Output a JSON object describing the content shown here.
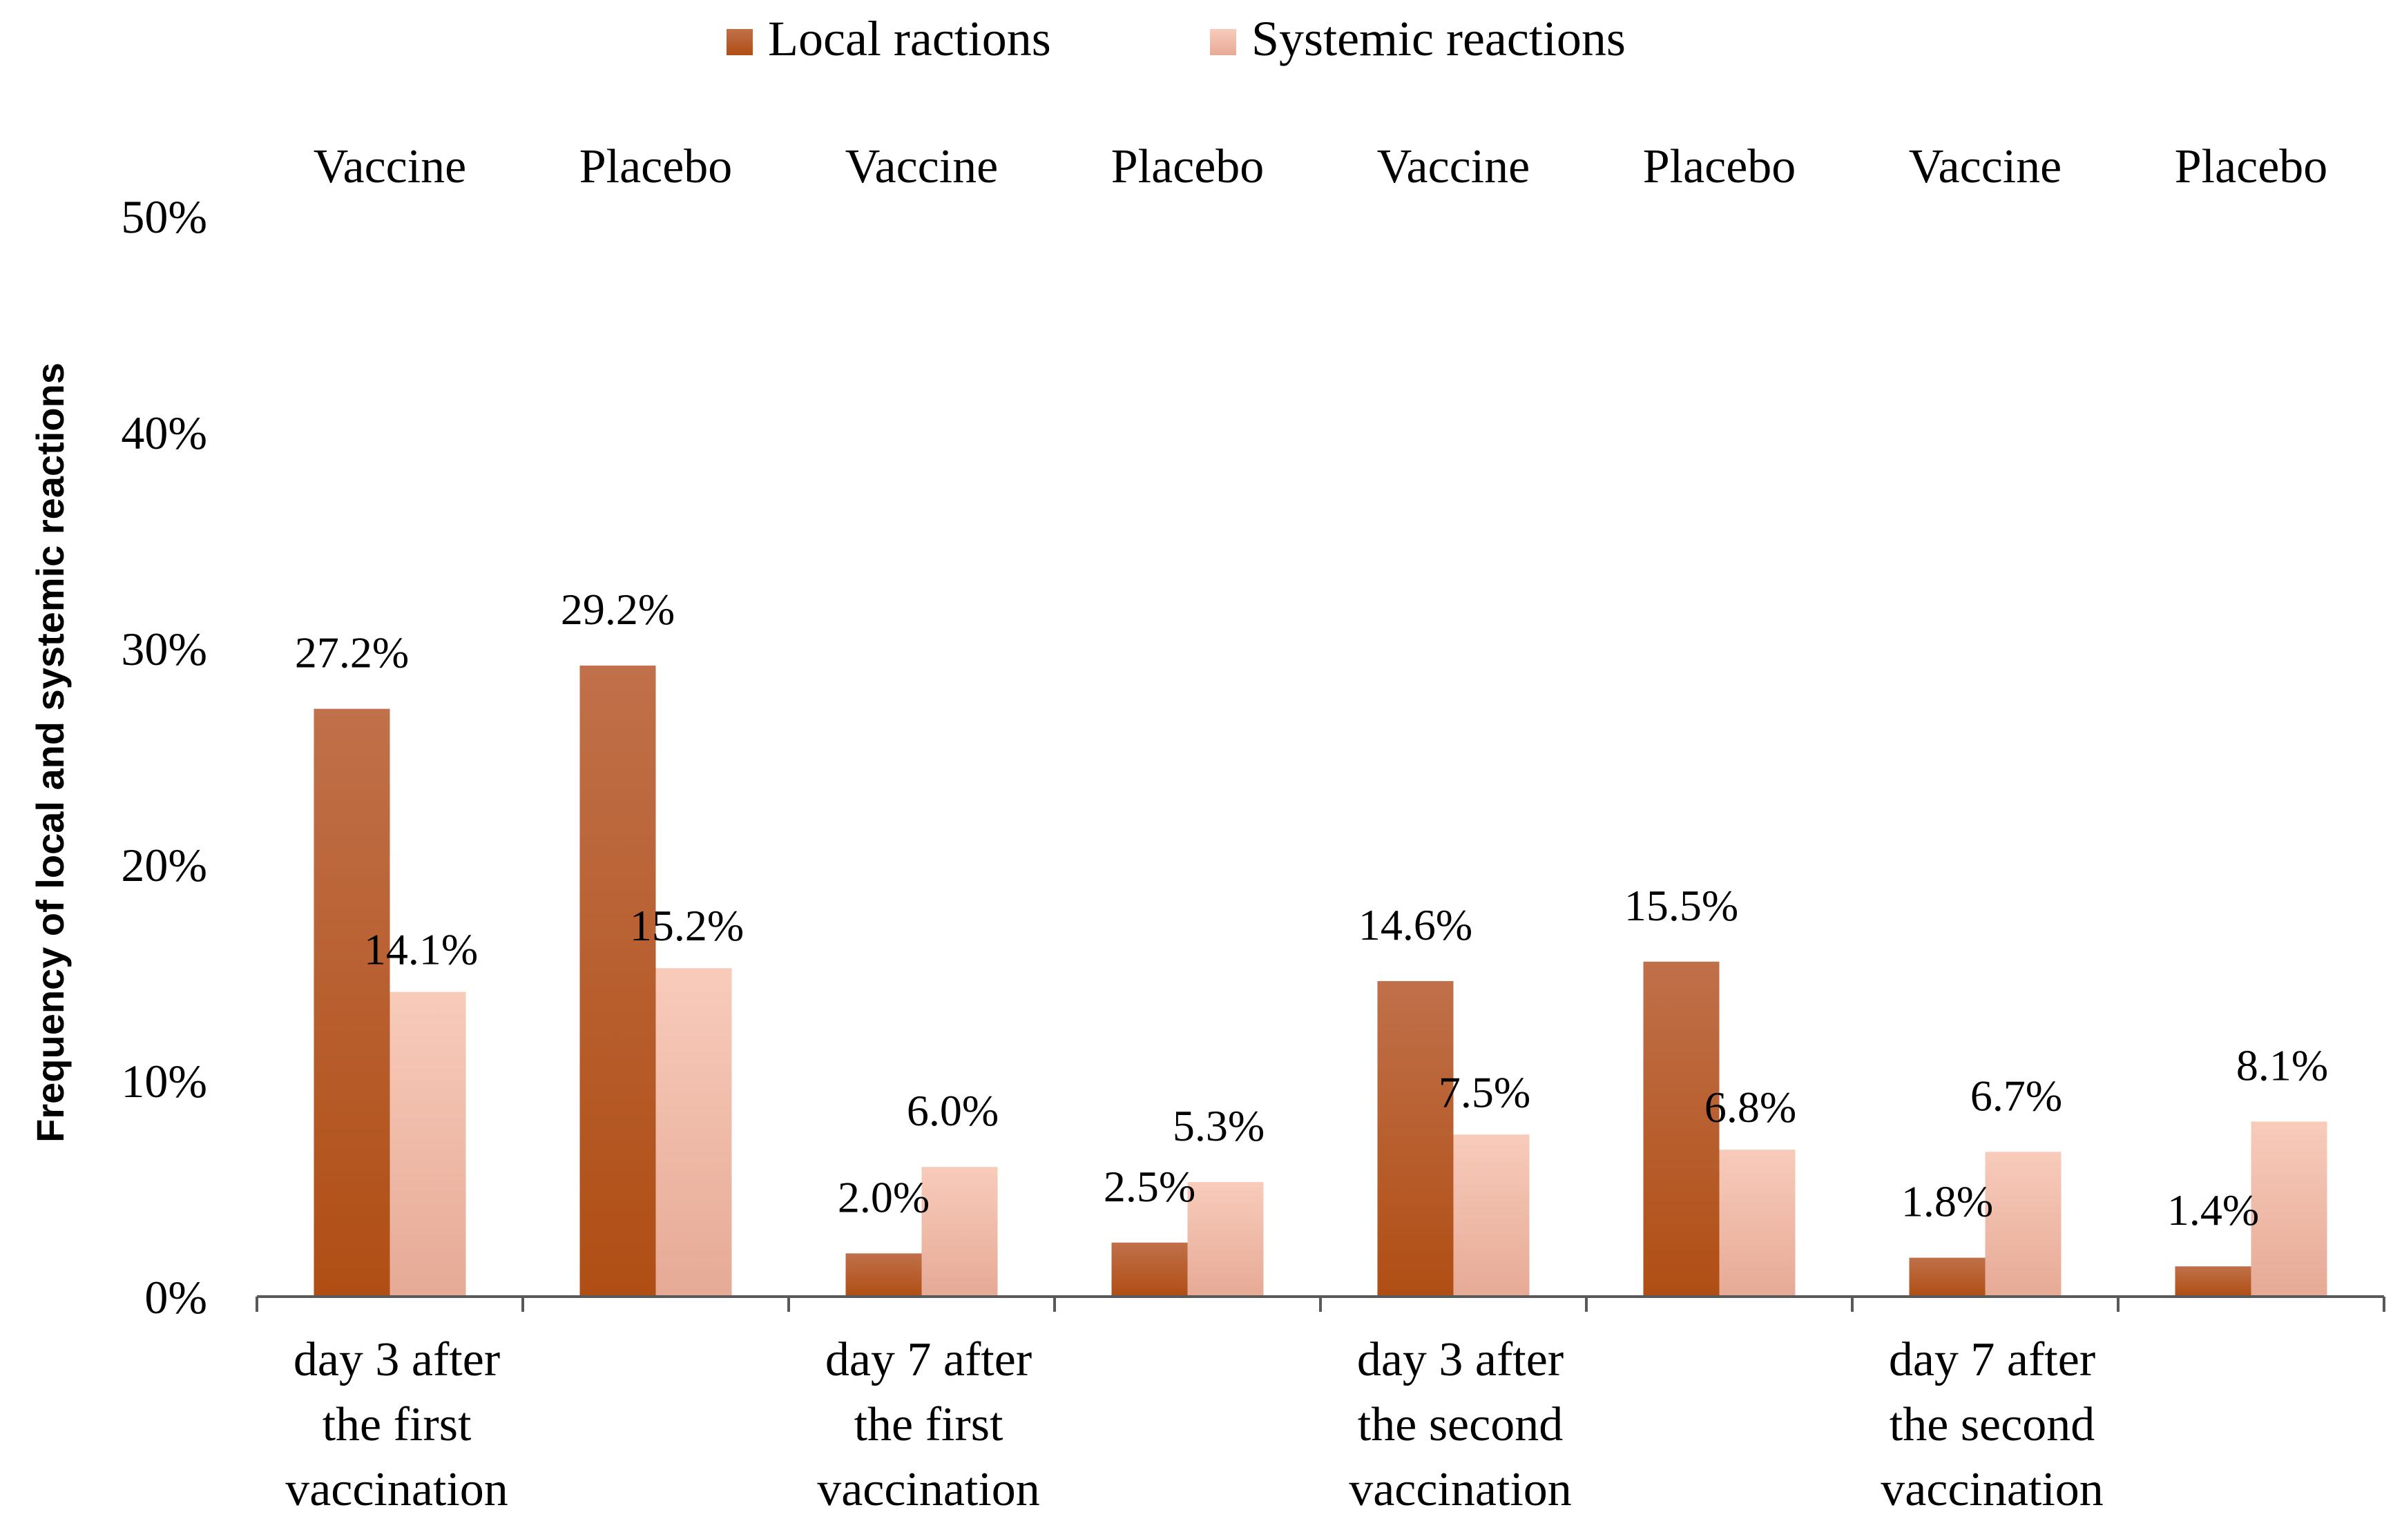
{
  "chart_data": {
    "type": "bar",
    "title": "",
    "xlabel": "",
    "ylabel": "Frequency of local and systemic reactions",
    "ylim": [
      0,
      50
    ],
    "yticks": [
      "0%",
      "10%",
      "20%",
      "30%",
      "40%",
      "50%"
    ],
    "legend": {
      "position": "top-center",
      "entries": [
        "Local ractions",
        "Systemic reactions"
      ]
    },
    "groups": [
      {
        "label": [
          "day 3 after",
          "the first",
          "vaccination"
        ],
        "subgroups": [
          "Vaccine",
          "Placebo"
        ]
      },
      {
        "label": [
          "day 7 after",
          "the first",
          "vaccination"
        ],
        "subgroups": [
          "Vaccine",
          "Placebo"
        ]
      },
      {
        "label": [
          "day 3 after",
          "the second",
          "vaccination"
        ],
        "subgroups": [
          "Vaccine",
          "Placebo"
        ]
      },
      {
        "label": [
          "day 7 after",
          "the second",
          "vaccination"
        ],
        "subgroups": [
          "Vaccine",
          "Placebo"
        ]
      }
    ],
    "categories": [
      "Vaccine",
      "Placebo",
      "Vaccine",
      "Placebo",
      "Vaccine",
      "Placebo",
      "Vaccine",
      "Placebo"
    ],
    "series": [
      {
        "name": "Local ractions",
        "values": [
          27.2,
          29.2,
          2.0,
          2.5,
          14.6,
          15.5,
          1.8,
          1.4
        ],
        "labels": [
          "27.2%",
          "29.2%",
          "2.0%",
          "2.5%",
          "14.6%",
          "15.5%",
          "1.8%",
          "1.4%"
        ]
      },
      {
        "name": "Systemic reactions",
        "values": [
          14.1,
          15.2,
          6.0,
          5.3,
          7.5,
          6.8,
          6.7,
          8.1
        ],
        "labels": [
          "14.1%",
          "15.2%",
          "6.0%",
          "5.3%",
          "7.5%",
          "6.8%",
          "6.7%",
          "8.1%"
        ]
      }
    ],
    "colors": {
      "local_top": "#c0704a",
      "local_bottom": "#b04e14",
      "systemic_top": "#f8cbbb",
      "systemic_bottom": "#e6aa96",
      "axis": "#595959",
      "text": "#000000"
    }
  }
}
